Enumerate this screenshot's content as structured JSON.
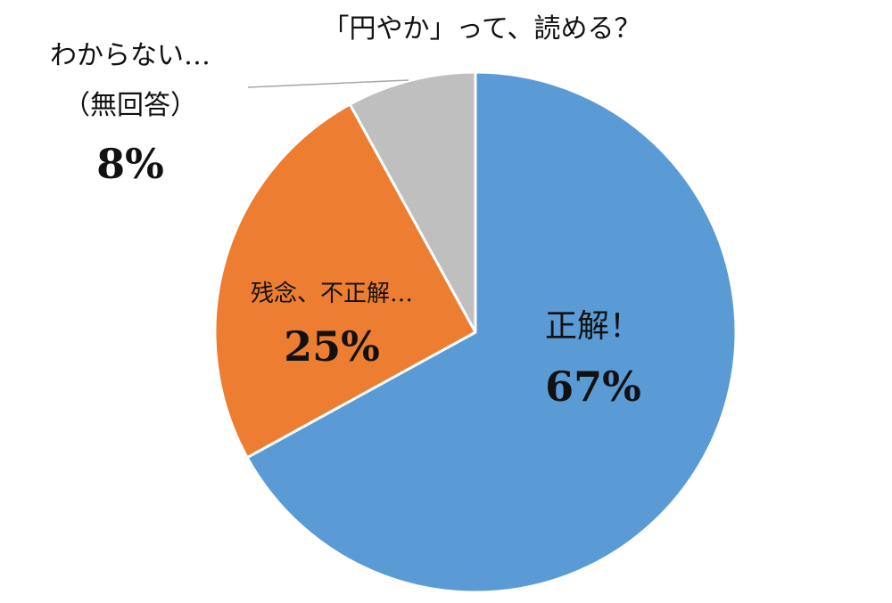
{
  "chart_data": {
    "type": "pie",
    "title": "「円やか」って、読める？",
    "slices": [
      {
        "label": "正解！",
        "value": 67,
        "value_label": "67%",
        "color": "#5B9BD5"
      },
      {
        "label": "残念、不正解…",
        "value": 25,
        "value_label": "25%",
        "color": "#ED7D31"
      },
      {
        "label_lines": [
          "わからない…",
          "（無回答）"
        ],
        "value": 8,
        "value_label": "8%",
        "color": "#BFBFBF"
      }
    ],
    "legend": "none",
    "data_labels": "on"
  }
}
